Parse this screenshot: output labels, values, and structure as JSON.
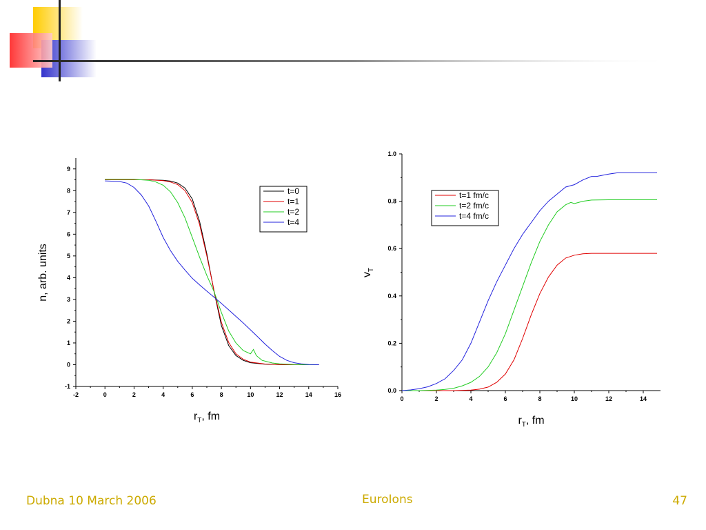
{
  "footer": {
    "left": "Dubna 10 March 2006",
    "center": "EuroIons",
    "right": "47"
  },
  "colors": {
    "accent_gold": "#ccaa00",
    "logo_yellow": "#ffcc00",
    "logo_red": "#ff3b3b",
    "logo_blue": "#3333cc"
  },
  "chart_data": [
    {
      "type": "line",
      "xlabel_main": "r",
      "xlabel_sub": "T",
      "xlabel_rest": ", fm",
      "ylabel": "n, arb. units",
      "xlim": [
        -2,
        16
      ],
      "ylim": [
        -1,
        9.5
      ],
      "xticks": [
        "-2",
        "0",
        "2",
        "4",
        "6",
        "8",
        "10",
        "12",
        "14",
        "16"
      ],
      "yticks": [
        "-1",
        "0",
        "1",
        "2",
        "3",
        "4",
        "5",
        "6",
        "7",
        "8",
        "9"
      ],
      "legend_position": "top-right",
      "series": [
        {
          "name": "t=0",
          "color": "#000000",
          "x": [
            0,
            2,
            3,
            4,
            4.5,
            5,
            5.5,
            6,
            6.5,
            7,
            7.5,
            8,
            8.5,
            9,
            9.5,
            10,
            11,
            12,
            13,
            14,
            14.7
          ],
          "y": [
            8.5,
            8.5,
            8.5,
            8.48,
            8.44,
            8.35,
            8.12,
            7.62,
            6.6,
            5.1,
            3.35,
            1.8,
            0.88,
            0.42,
            0.2,
            0.09,
            0.02,
            0.01,
            0,
            0,
            0
          ]
        },
        {
          "name": "t=1",
          "color": "#e00000",
          "x": [
            0,
            2,
            3,
            4,
            4.5,
            5,
            5.5,
            6,
            6.5,
            7,
            7.5,
            8,
            8.5,
            9,
            9.5,
            10,
            11,
            12,
            13,
            14,
            14.7
          ],
          "y": [
            8.5,
            8.5,
            8.5,
            8.46,
            8.4,
            8.28,
            8.0,
            7.45,
            6.45,
            5.0,
            3.38,
            1.95,
            1.02,
            0.5,
            0.25,
            0.12,
            0.03,
            0.01,
            0,
            0,
            0
          ]
        },
        {
          "name": "t=2",
          "color": "#22cc22",
          "x": [
            0,
            1,
            2,
            3,
            3.5,
            4,
            4.5,
            5,
            5.5,
            6,
            6.5,
            7,
            7.5,
            8,
            8.5,
            9,
            9.5,
            10,
            10.2,
            10.4,
            10.8,
            11.5,
            12,
            13,
            14,
            14.7
          ],
          "y": [
            8.52,
            8.52,
            8.52,
            8.48,
            8.4,
            8.25,
            7.95,
            7.45,
            6.75,
            5.85,
            4.95,
            4.1,
            3.35,
            2.4,
            1.55,
            1.0,
            0.65,
            0.5,
            0.7,
            0.42,
            0.2,
            0.08,
            0.04,
            0.01,
            0,
            0
          ]
        },
        {
          "name": "t=4",
          "color": "#2222dd",
          "x": [
            0,
            1,
            1.5,
            2,
            2.5,
            3,
            3.5,
            4,
            4.5,
            5,
            5.5,
            6,
            6.5,
            7,
            7.5,
            8,
            8.5,
            9,
            9.5,
            10,
            10.5,
            11,
            11.5,
            12,
            12.5,
            13,
            13.5,
            14,
            14.7
          ],
          "y": [
            8.45,
            8.42,
            8.35,
            8.15,
            7.8,
            7.3,
            6.6,
            5.85,
            5.25,
            4.75,
            4.35,
            3.97,
            3.67,
            3.38,
            3.1,
            2.82,
            2.52,
            2.22,
            1.92,
            1.6,
            1.28,
            0.95,
            0.65,
            0.38,
            0.2,
            0.09,
            0.04,
            0.01,
            0
          ]
        }
      ]
    },
    {
      "type": "line",
      "xlabel_main": "r",
      "xlabel_sub": "T",
      "xlabel_rest": ", fm",
      "ylabel_main": "v",
      "ylabel_sub": "T",
      "xlim": [
        0,
        15
      ],
      "ylim": [
        0,
        1.0
      ],
      "xticks": [
        "0",
        "2",
        "4",
        "6",
        "8",
        "10",
        "12",
        "14"
      ],
      "yticks": [
        "0.0",
        "0.2",
        "0.4",
        "0.6",
        "0.8",
        "1.0"
      ],
      "legend_position": "top-left",
      "series": [
        {
          "name": "t=1 fm/c",
          "color": "#e00000",
          "x": [
            0,
            1,
            2,
            3,
            4,
            4.5,
            5,
            5.5,
            6,
            6.5,
            7,
            7.5,
            8,
            8.5,
            9,
            9.5,
            10,
            10.5,
            11,
            12,
            13,
            14,
            14.8
          ],
          "y": [
            0,
            0,
            0,
            0,
            0.002,
            0.006,
            0.015,
            0.035,
            0.07,
            0.13,
            0.22,
            0.32,
            0.41,
            0.48,
            0.53,
            0.56,
            0.572,
            0.578,
            0.58,
            0.58,
            0.58,
            0.58,
            0.58
          ]
        },
        {
          "name": "t=2 fm/c",
          "color": "#22cc22",
          "x": [
            0,
            1,
            2,
            2.5,
            3,
            3.5,
            4,
            4.5,
            5,
            5.5,
            6,
            6.5,
            7,
            7.5,
            8,
            8.5,
            9,
            9.5,
            9.8,
            10,
            10.5,
            11,
            12,
            13,
            14,
            14.8
          ],
          "y": [
            0,
            0,
            0.002,
            0.005,
            0.01,
            0.02,
            0.035,
            0.06,
            0.1,
            0.16,
            0.24,
            0.34,
            0.44,
            0.54,
            0.63,
            0.7,
            0.755,
            0.785,
            0.795,
            0.79,
            0.8,
            0.805,
            0.806,
            0.806,
            0.806,
            0.806
          ]
        },
        {
          "name": "t=4 fm/c",
          "color": "#2222dd",
          "x": [
            0,
            0.5,
            1,
            1.5,
            2,
            2.5,
            3,
            3.5,
            4,
            4.5,
            5,
            5.5,
            6,
            6.5,
            7,
            7.5,
            8,
            8.5,
            9,
            9.5,
            10,
            10.5,
            11,
            11.3,
            12,
            12.5,
            13,
            14,
            14.8
          ],
          "y": [
            0,
            0.003,
            0.008,
            0.016,
            0.03,
            0.05,
            0.085,
            0.13,
            0.2,
            0.29,
            0.38,
            0.46,
            0.53,
            0.6,
            0.66,
            0.71,
            0.76,
            0.8,
            0.83,
            0.86,
            0.87,
            0.89,
            0.905,
            0.905,
            0.915,
            0.92,
            0.92,
            0.92,
            0.92
          ]
        }
      ]
    }
  ]
}
